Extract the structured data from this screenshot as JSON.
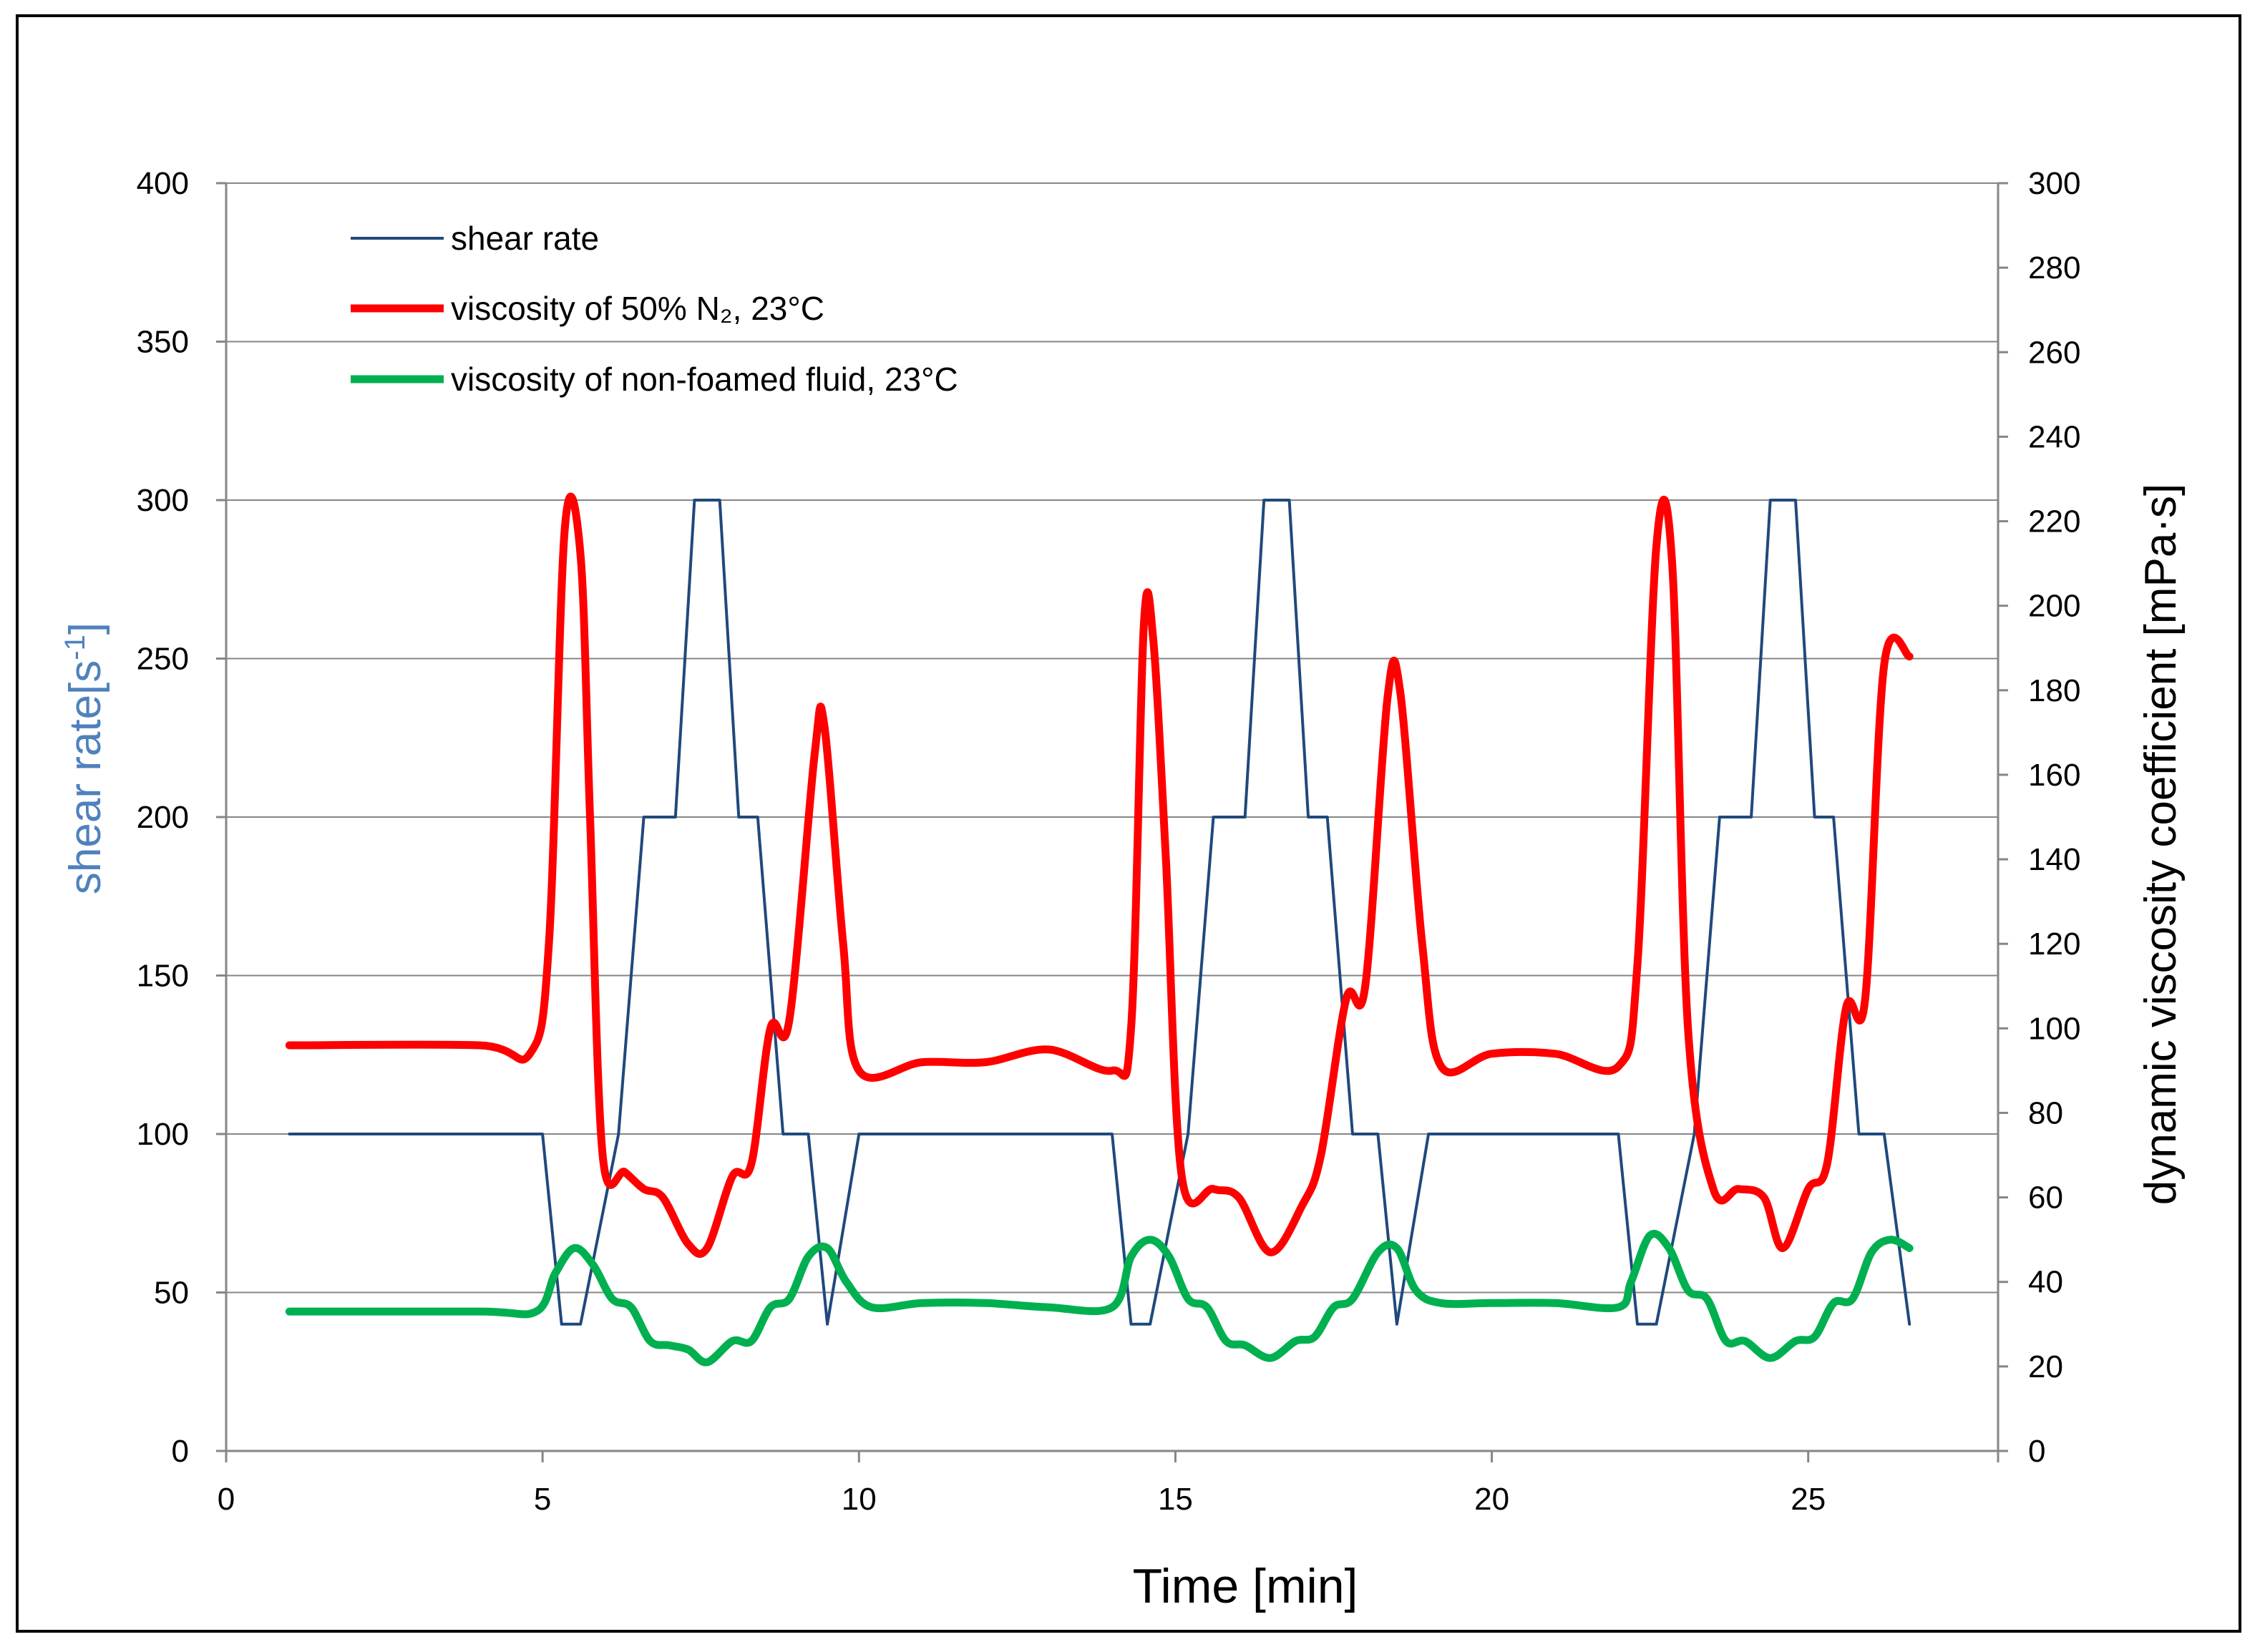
{
  "chart_data": {
    "type": "line",
    "title": "",
    "xlabel": "Time [min]",
    "ylabel_left_main": "shear rate",
    "ylabel_left_unit": "[s",
    "ylabel_left_sup": "-1",
    "ylabel_left_close": "]",
    "ylabel_right": "dynamic viscosity coefficient [mPa·s]",
    "xlim": [
      0,
      28
    ],
    "ylim_left": [
      0,
      400
    ],
    "ylim_right": [
      0,
      300
    ],
    "x_ticks": [
      "0",
      "5",
      "10",
      "15",
      "20",
      "25"
    ],
    "y_left_ticks": [
      "0",
      "50",
      "100",
      "150",
      "200",
      "250",
      "300",
      "350",
      "400"
    ],
    "y_right_ticks": [
      "0",
      "20",
      "40",
      "60",
      "80",
      "100",
      "120",
      "140",
      "160",
      "180",
      "200",
      "220",
      "240",
      "260",
      "280",
      "300"
    ],
    "grid": "horizontal",
    "legend_position": "top-left",
    "series": [
      {
        "name": "shear rate",
        "axis": "left",
        "color": "#1f497d",
        "x": [
          1,
          5,
          5.3,
          5.6,
          6.2,
          6.6,
          7.1,
          7.4,
          7.8,
          8.1,
          8.4,
          8.8,
          9.2,
          9.5,
          10,
          14,
          14.3,
          14.6,
          15.2,
          15.6,
          16.1,
          16.4,
          16.8,
          17.1,
          17.4,
          17.8,
          18.2,
          18.5,
          19,
          22,
          22.3,
          22.6,
          23.2,
          23.6,
          24.1,
          24.4,
          24.8,
          25.1,
          25.4,
          25.8,
          26.2,
          26.6
        ],
        "values": [
          100,
          100,
          40,
          40,
          100,
          200,
          200,
          300,
          300,
          200,
          200,
          100,
          100,
          40,
          100,
          100,
          40,
          40,
          100,
          200,
          200,
          300,
          300,
          200,
          200,
          100,
          100,
          40,
          100,
          100,
          40,
          40,
          100,
          200,
          200,
          300,
          300,
          200,
          200,
          100,
          100,
          40
        ]
      },
      {
        "name": "viscosity of 50% N₂, 23°C",
        "axis": "right",
        "color": "#ff0000",
        "x": [
          1,
          4,
          4.8,
          5.1,
          5.35,
          5.6,
          5.75,
          5.95,
          6.3,
          6.6,
          6.9,
          7.3,
          7.6,
          8.0,
          8.3,
          8.6,
          8.9,
          9.3,
          9.45,
          9.75,
          10.0,
          11,
          12,
          13,
          14,
          14.3,
          14.5,
          14.65,
          14.85,
          15.1,
          15.6,
          16.0,
          16.5,
          17.0,
          17.3,
          17.7,
          18.0,
          18.35,
          18.55,
          18.9,
          19.2,
          20,
          21,
          22,
          22.3,
          22.6,
          22.85,
          23.1,
          23.5,
          23.9,
          24.3,
          24.6,
          25,
          25.3,
          25.6,
          25.9,
          26.2,
          26.6
        ],
        "values": [
          96,
          96,
          94,
          120,
          218,
          212,
          150,
          70,
          66,
          62,
          60,
          49,
          48,
          65,
          68,
          100,
          102,
          165,
          172,
          120,
          90,
          92,
          92,
          95,
          90,
          100,
          195,
          192,
          140,
          65,
          62,
          60,
          47,
          58,
          70,
          107,
          110,
          178,
          180,
          120,
          91,
          94,
          94,
          91,
          115,
          214,
          210,
          100,
          62,
          62,
          60,
          48,
          62,
          68,
          105,
          107,
          186,
          188
        ]
      },
      {
        "name": "viscosity of non-foamed fluid, 23°C",
        "axis": "right",
        "color": "#00b050",
        "x": [
          1,
          4,
          4.9,
          5.2,
          5.5,
          5.8,
          6.1,
          6.4,
          6.7,
          7.0,
          7.3,
          7.6,
          8.0,
          8.3,
          8.6,
          8.9,
          9.2,
          9.5,
          9.8,
          10.2,
          11,
          12,
          13,
          14,
          14.3,
          14.6,
          14.9,
          15.2,
          15.5,
          15.8,
          16.1,
          16.5,
          16.9,
          17.2,
          17.5,
          17.8,
          18.2,
          18.5,
          18.8,
          19.2,
          20,
          21,
          22,
          22.2,
          22.5,
          22.8,
          23.1,
          23.4,
          23.7,
          24.0,
          24.4,
          24.8,
          25.1,
          25.4,
          25.7,
          26.0,
          26.3,
          26.6
        ],
        "values": [
          33,
          33,
          33,
          42,
          48,
          44,
          36,
          34,
          26,
          25,
          24,
          21,
          26,
          26,
          34,
          36,
          46,
          48,
          40,
          34,
          35,
          35,
          34,
          34,
          46,
          50,
          46,
          36,
          34,
          26,
          25,
          22,
          26,
          27,
          34,
          36,
          47,
          48,
          38,
          35,
          35,
          35,
          34,
          40,
          51,
          48,
          38,
          36,
          26,
          26,
          22,
          26,
          27,
          35,
          36,
          47,
          50,
          48
        ]
      }
    ]
  }
}
